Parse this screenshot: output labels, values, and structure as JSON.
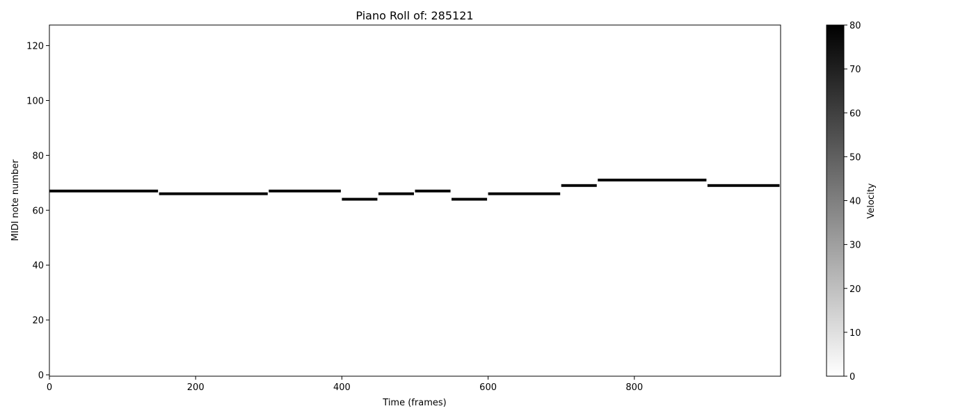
{
  "chart_data": {
    "type": "heatmap",
    "title": "Piano Roll of: 285121",
    "xlabel": "Time (frames)",
    "ylabel": "MIDI note number",
    "xlim": [
      0,
      1000
    ],
    "ylim": [
      0,
      127
    ],
    "xticks": [
      "0",
      "200",
      "400",
      "600",
      "800"
    ],
    "yticks": [
      "0",
      "20",
      "40",
      "60",
      "80",
      "100",
      "120"
    ],
    "grid": false,
    "notes": [
      {
        "start": 0,
        "end": 150,
        "pitch": 67,
        "velocity": 80
      },
      {
        "start": 150,
        "end": 300,
        "pitch": 66,
        "velocity": 80
      },
      {
        "start": 300,
        "end": 400,
        "pitch": 67,
        "velocity": 80
      },
      {
        "start": 400,
        "end": 450,
        "pitch": 64,
        "velocity": 80
      },
      {
        "start": 450,
        "end": 500,
        "pitch": 66,
        "velocity": 80
      },
      {
        "start": 500,
        "end": 550,
        "pitch": 67,
        "velocity": 80
      },
      {
        "start": 550,
        "end": 600,
        "pitch": 64,
        "velocity": 80
      },
      {
        "start": 600,
        "end": 700,
        "pitch": 66,
        "velocity": 80
      },
      {
        "start": 700,
        "end": 750,
        "pitch": 69,
        "velocity": 80
      },
      {
        "start": 750,
        "end": 900,
        "pitch": 71,
        "velocity": 80
      },
      {
        "start": 900,
        "end": 1000,
        "pitch": 69,
        "velocity": 80
      }
    ],
    "colorbar": {
      "label": "Velocity",
      "range": [
        0,
        80
      ],
      "ticks": [
        "0",
        "10",
        "20",
        "30",
        "40",
        "50",
        "60",
        "70",
        "80"
      ],
      "colormap": "greys",
      "color_low": "#ffffff",
      "color_high": "#000000"
    }
  }
}
